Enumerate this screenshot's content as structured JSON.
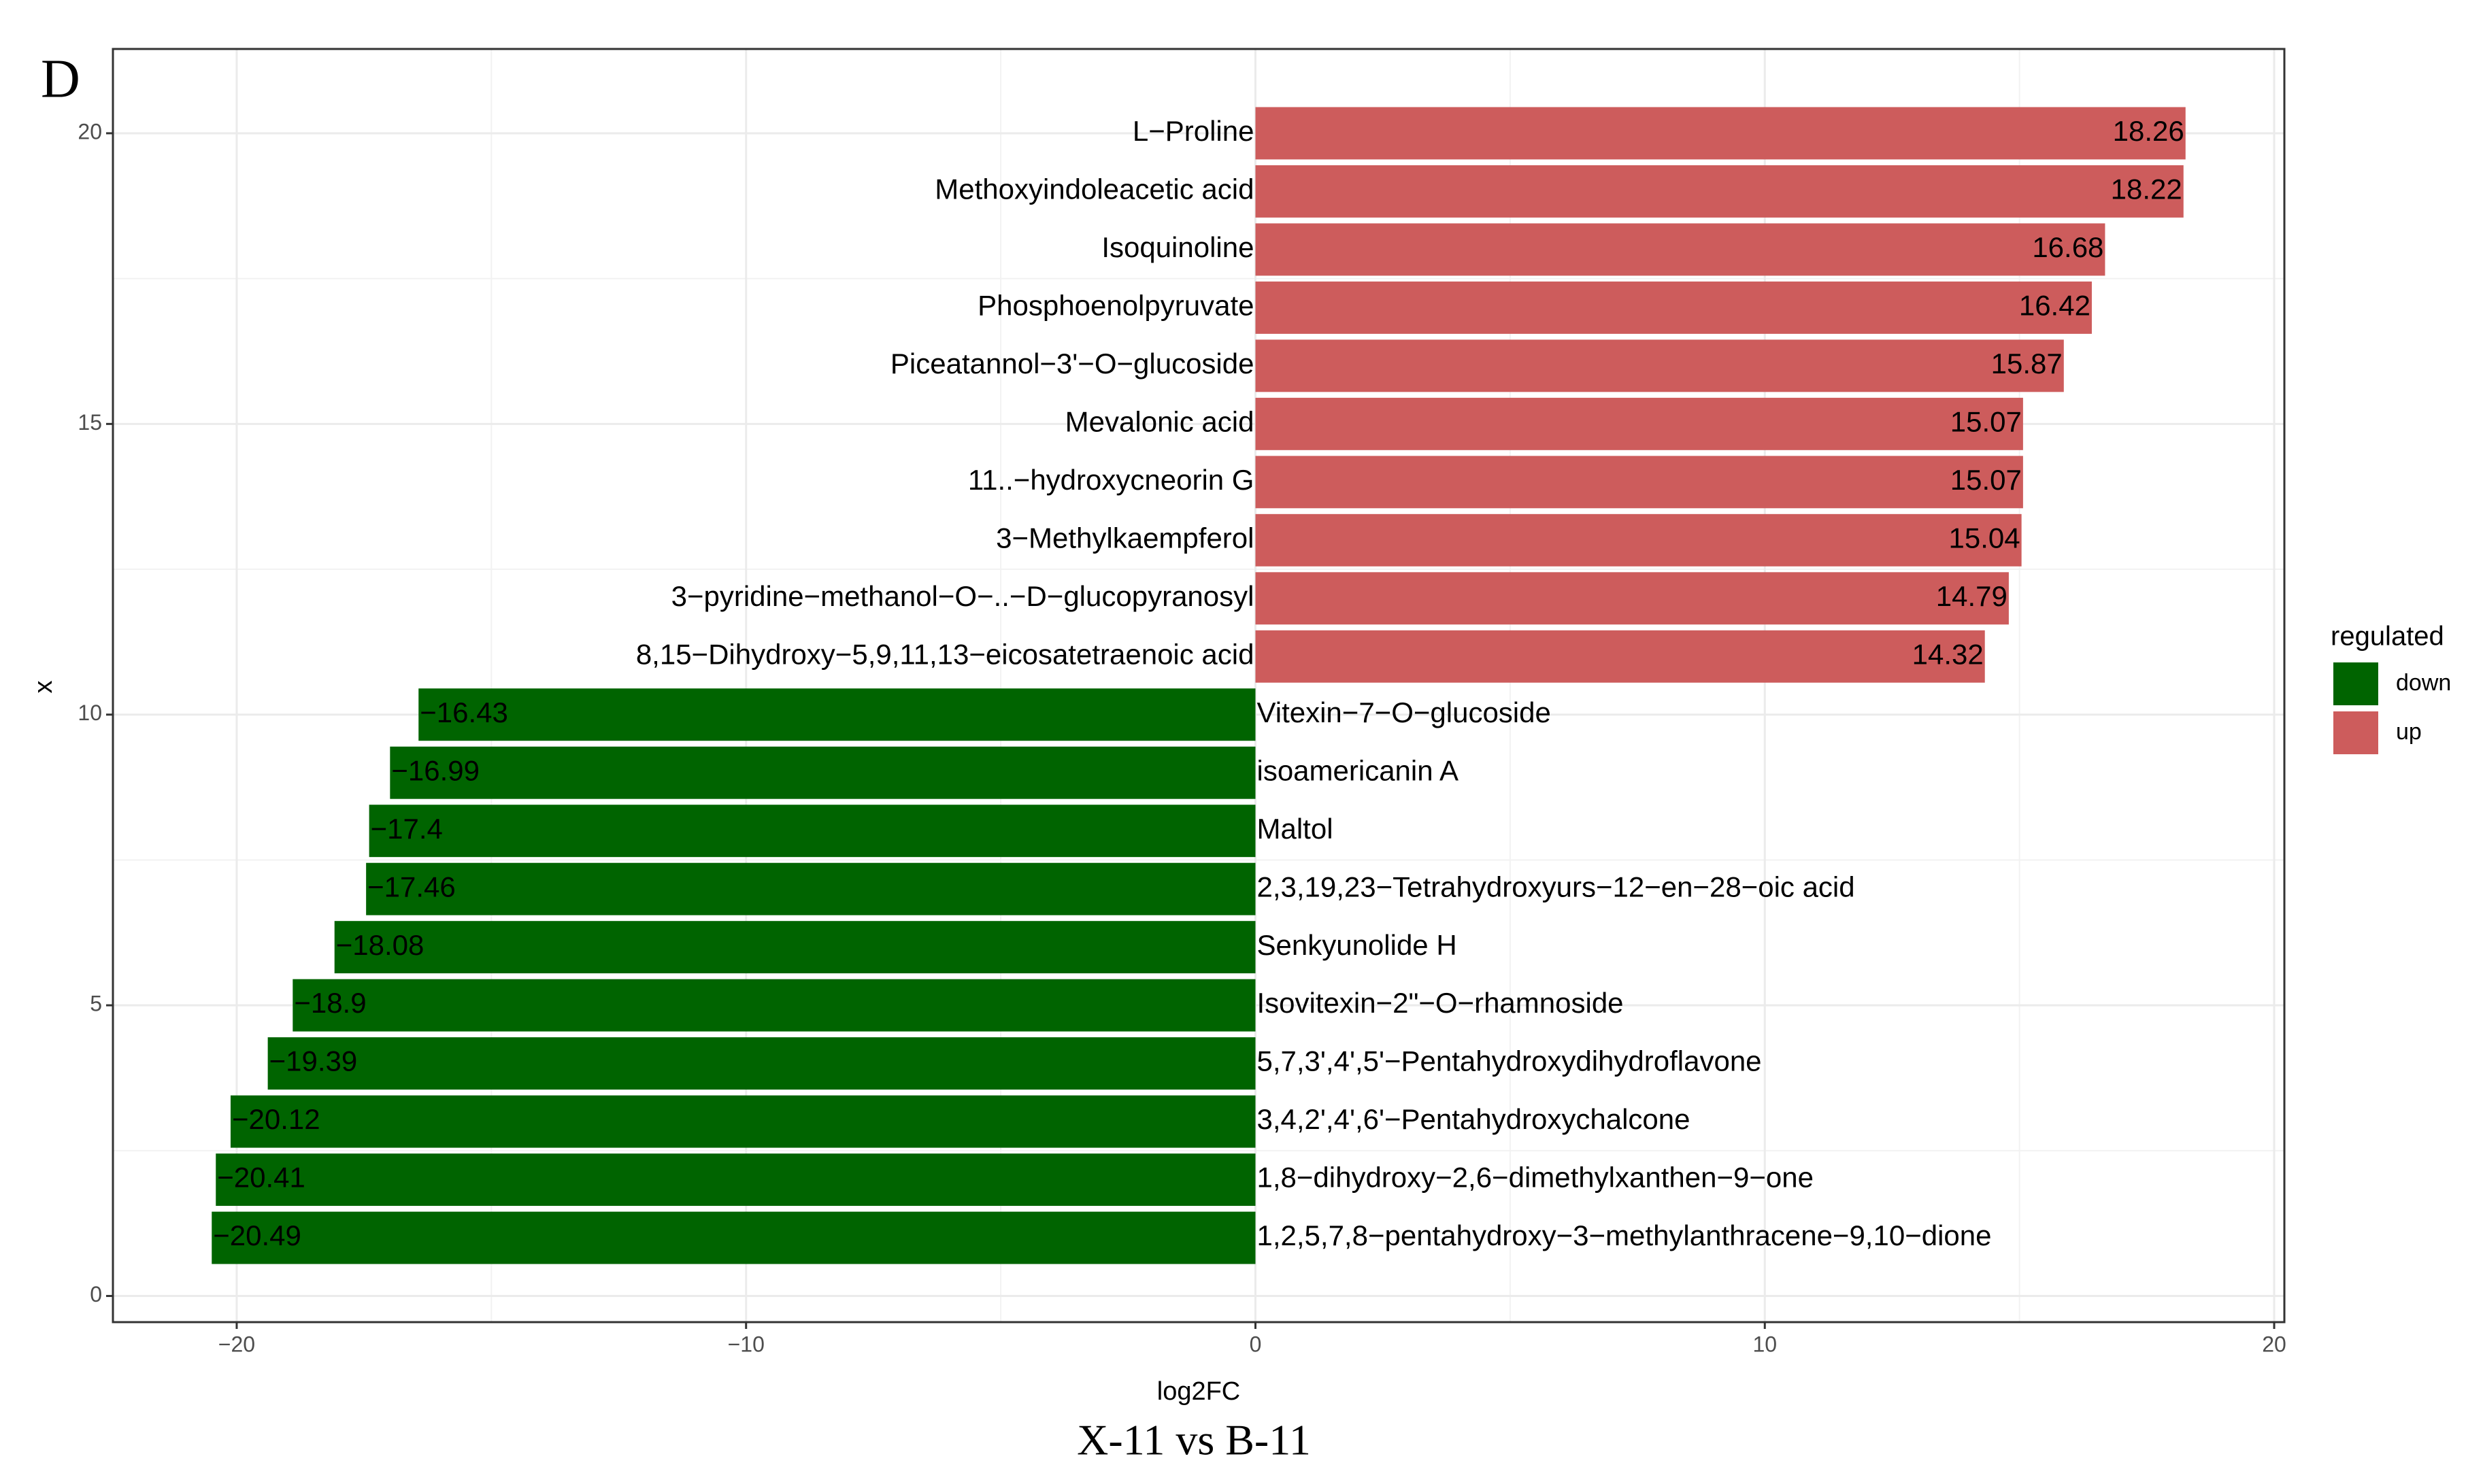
{
  "chart_data": {
    "type": "bar",
    "orientation": "horizontal",
    "panel_label": "D",
    "title": "X-11 vs B-11",
    "x_label": "log2FC",
    "y_label": "x",
    "legend_title": "regulated",
    "grid": true,
    "xlim": [
      -22.43,
      20.2
    ],
    "xticks": [
      {
        "value": -20,
        "label": "−20"
      },
      {
        "value": -10,
        "label": "−10"
      },
      0,
      10,
      20
    ],
    "ylim": [
      -0.45,
      21.45
    ],
    "yticks": [
      0,
      5,
      10,
      15,
      20
    ],
    "series": [
      {
        "name": "down",
        "color": "#006400",
        "y": [
          1,
          2,
          3,
          4,
          5,
          6,
          7,
          8,
          9,
          10
        ],
        "labels": [
          "1,2,5,7,8−pentahydroxy−3−methylanthracene−9,10−dione",
          "1,8−dihydroxy−2,6−dimethylxanthen−9−one",
          "3,4,2',4',6'−Pentahydroxychalcone",
          "5,7,3',4',5'−Pentahydroxydihydroflavone",
          "Isovitexin−2\"−O−rhamnoside",
          "Senkyunolide H",
          "2,3,19,23−Tetrahydroxyurs−12−en−28−oic acid",
          "Maltol",
          "isoamericanin A",
          "Vitexin−7−O−glucoside"
        ],
        "values": [
          -20.49,
          -20.41,
          -20.12,
          -19.39,
          -18.9,
          -18.08,
          -17.46,
          -17.4,
          -16.99,
          -16.43
        ],
        "value_labels": [
          "−20.49",
          "−20.41",
          "−20.12",
          "−19.39",
          "−18.9",
          "−18.08",
          "−17.46",
          "−17.4",
          "−16.99",
          "−16.43"
        ]
      },
      {
        "name": "up",
        "color": "#CD5C5C",
        "y": [
          11,
          12,
          13,
          14,
          15,
          16,
          17,
          18,
          19,
          20
        ],
        "labels": [
          "8,15−Dihydroxy−5,9,11,13−eicosatetraenoic acid",
          "3−pyridine−methanol−O−..−D−glucopyranosyl",
          "3−Methylkaempferol",
          "11..−hydroxycneorin G",
          "Mevalonic acid",
          "Piceatannol−3'−O−glucoside",
          "Phosphoenolpyruvate",
          "Isoquinoline",
          "Methoxyindoleacetic acid",
          "L−Proline"
        ],
        "values": [
          14.32,
          14.79,
          15.04,
          15.07,
          15.07,
          15.87,
          16.42,
          16.68,
          18.22,
          18.26
        ],
        "value_labels": [
          "14.32",
          "14.79",
          "15.04",
          "15.07",
          "15.07",
          "15.87",
          "16.42",
          "16.68",
          "18.22",
          "18.26"
        ]
      }
    ]
  }
}
